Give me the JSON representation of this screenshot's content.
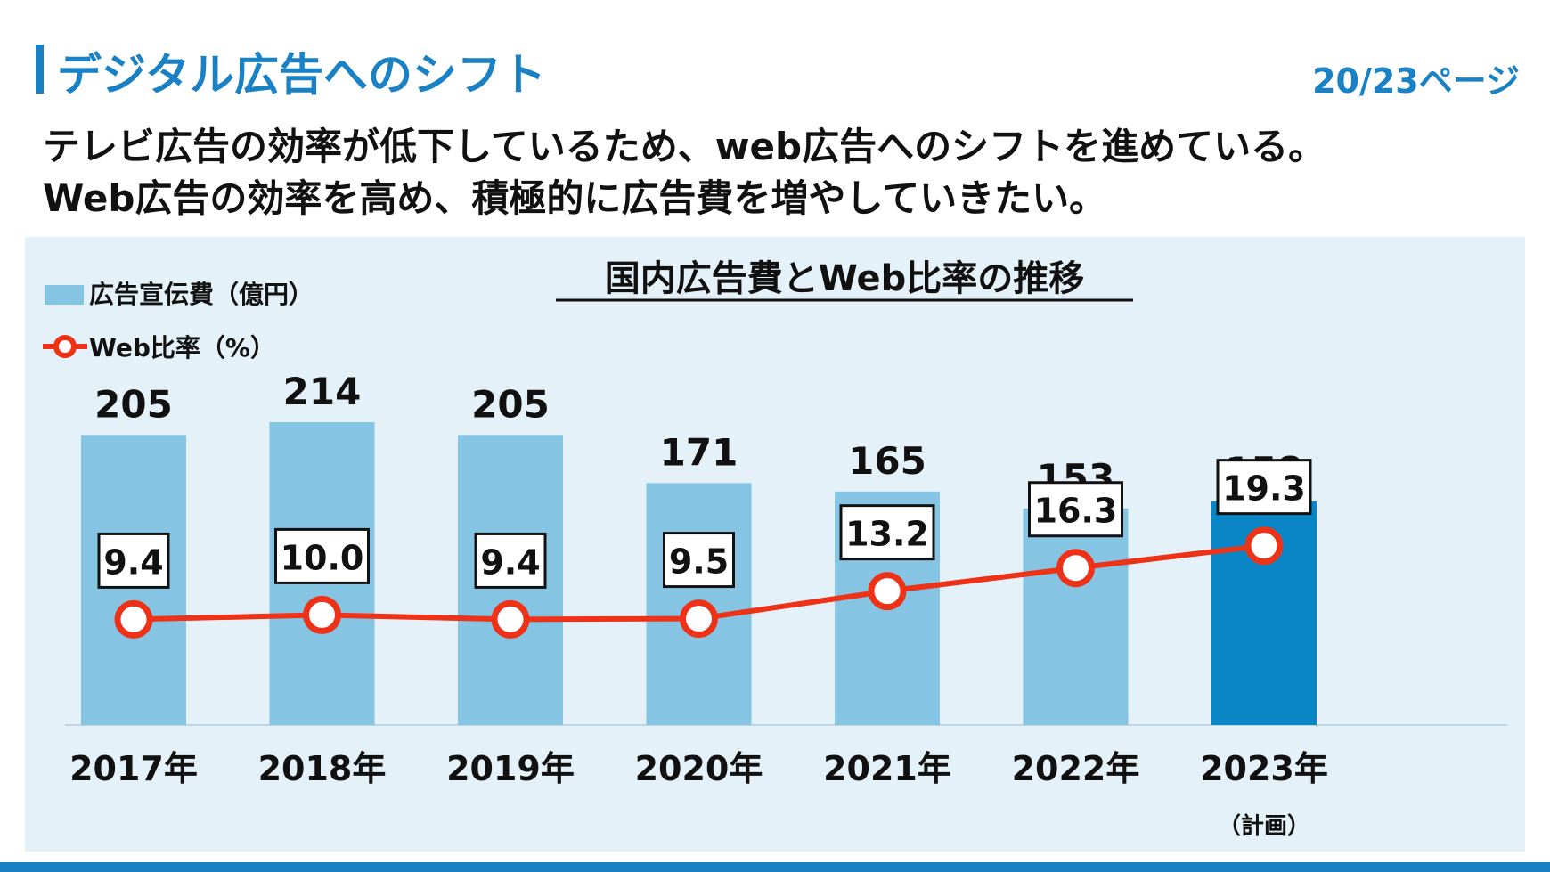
{
  "header": {
    "title": "デジタル広告へのシフト",
    "page": "20/23ページ"
  },
  "lead": {
    "line1": "テレビ広告の効率が低下しているため、web広告へのシフトを進めている。",
    "line2": "Web広告の効率を高め、積極的に広告費を増やしていきたい。"
  },
  "colors": {
    "accent": "#1a82c4",
    "bar": "#85c4e3",
    "bar_plan": "#0a86c6",
    "line": "#ee3217",
    "panel": "#e5f1f8"
  },
  "chart_data": {
    "type": "bar+line",
    "title": "国内広告費とWeb比率の推移",
    "categories": [
      "2017年",
      "2018年",
      "2019年",
      "2020年",
      "2021年",
      "2022年",
      "2023年"
    ],
    "category_notes": [
      "",
      "",
      "",
      "",
      "",
      "",
      "（計画）"
    ],
    "series": [
      {
        "name": "広告宣伝費（億円）",
        "type": "bar",
        "values": [
          205,
          214,
          205,
          171,
          165,
          153,
          158
        ],
        "labels": [
          "205",
          "214",
          "205",
          "171",
          "165",
          "153",
          "158"
        ]
      },
      {
        "name": "Web比率（%）",
        "type": "line",
        "values": [
          9.4,
          10.0,
          9.4,
          9.5,
          13.2,
          16.3,
          19.3
        ],
        "labels": [
          "9.4",
          "10.0",
          "9.4",
          "9.5",
          "13.2",
          "16.3",
          "19.3"
        ]
      }
    ],
    "ylim_bar": [
      0,
      214
    ],
    "ylim_line": [
      0,
      45
    ],
    "grid": false,
    "legend_position": "top-left",
    "highlight_last": true
  }
}
